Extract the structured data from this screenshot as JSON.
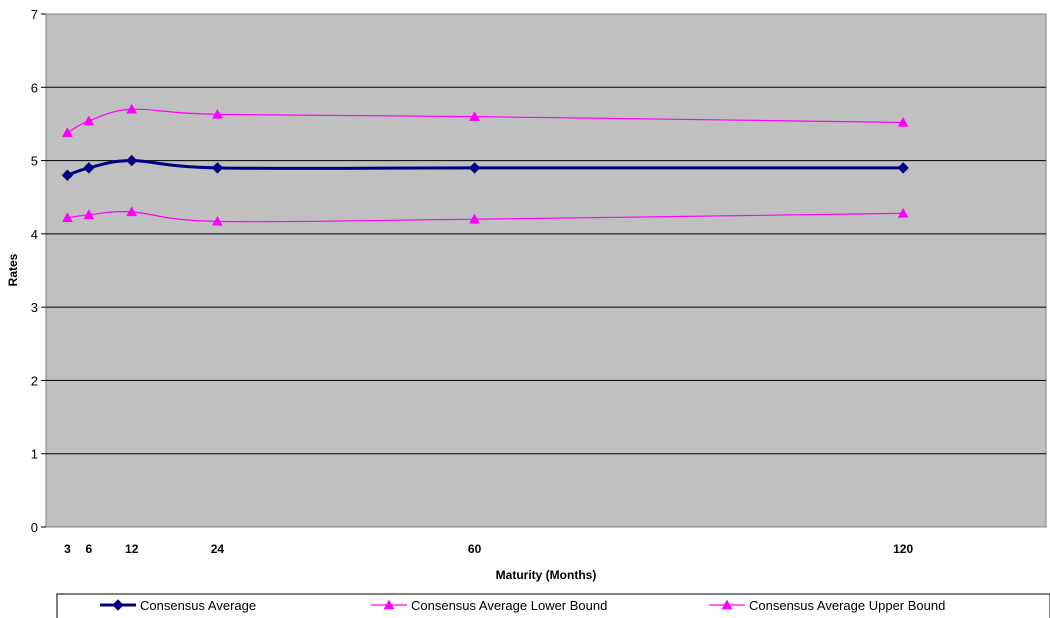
{
  "chart_data": {
    "type": "line",
    "xlabel": "Maturity (Months)",
    "ylabel": "Rates",
    "x": [
      3,
      6,
      12,
      24,
      60,
      120
    ],
    "xlim": [
      0,
      140
    ],
    "ylim": [
      0,
      7
    ],
    "yticks": [
      0,
      1,
      2,
      3,
      4,
      5,
      6,
      7
    ],
    "grid": true,
    "legend_position": "bottom",
    "plot_background": "#c0c0c0",
    "series": [
      {
        "name": "Consensus Average",
        "values": [
          4.8,
          4.9,
          5.0,
          4.9,
          4.9,
          4.9
        ],
        "color": "#000080",
        "marker": "diamond",
        "line_width": "thick"
      },
      {
        "name": "Consensus Average Lower Bound",
        "values": [
          4.22,
          4.26,
          4.3,
          4.17,
          4.2,
          4.28
        ],
        "color": "#ff00ff",
        "marker": "triangle",
        "line_width": "thin"
      },
      {
        "name": "Consensus Average Upper Bound",
        "values": [
          5.38,
          5.54,
          5.7,
          5.63,
          5.6,
          5.52
        ],
        "color": "#ff00ff",
        "marker": "triangle",
        "line_width": "thin"
      }
    ]
  }
}
